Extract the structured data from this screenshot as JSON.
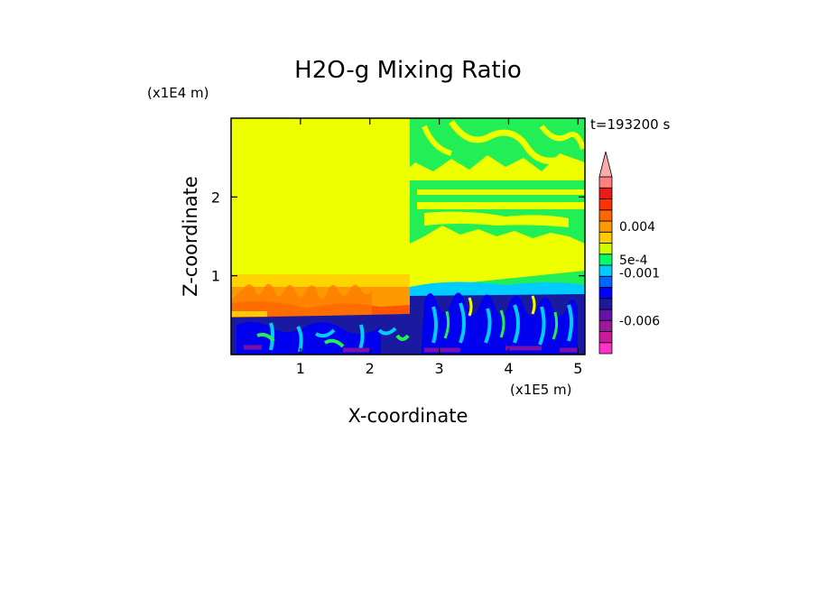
{
  "chart_data": {
    "type": "heatmap",
    "title": "H2O-g Mixing Ratio",
    "xlabel": "X-coordinate",
    "ylabel": "Z-coordinate",
    "x_units": "(x1E5 m)",
    "y_units": "(x1E4 m)",
    "time_label": "t=193200 s",
    "xlim": [
      0,
      5.1
    ],
    "ylim": [
      0,
      3.0
    ],
    "x_ticks": [
      1,
      2,
      3,
      4,
      5
    ],
    "y_ticks": [
      1,
      2
    ],
    "colorbar": {
      "colors_bottom_to_top": [
        "#ff33cc",
        "#cc1a99",
        "#9a1a9a",
        "#6611aa",
        "#1a1a9a",
        "#0000ff",
        "#0066ff",
        "#00ccff",
        "#00ff66",
        "#ccff00",
        "#ffcc00",
        "#ff9900",
        "#ff6600",
        "#ff3300",
        "#ee1a1a",
        "#ff8080"
      ],
      "extend_top": true,
      "labels": [
        {
          "text": "0.004",
          "value": 0.004
        },
        {
          "text": "5e-4",
          "value": 0.0005
        },
        {
          "text": "-0.001",
          "value": -0.001
        },
        {
          "text": "-0.006",
          "value": -0.006
        }
      ]
    },
    "regions": [
      {
        "x": [
          0,
          2.55
        ],
        "z": [
          1.0,
          3.0
        ],
        "value": 0.0,
        "level": "near zero"
      },
      {
        "x": [
          0,
          2.55
        ],
        "z": [
          0.5,
          1.0
        ],
        "value": 0.003,
        "level": "positive"
      },
      {
        "x": [
          0,
          2.55
        ],
        "z": [
          0,
          0.5
        ],
        "value": -0.004,
        "level": "negative"
      },
      {
        "x": [
          2.55,
          5.1
        ],
        "z": [
          1.0,
          3.0
        ],
        "value": -0.0005,
        "level": "slightly negative"
      },
      {
        "x": [
          2.55,
          5.1
        ],
        "z": [
          0,
          1.0
        ],
        "value": -0.004,
        "level": "negative"
      }
    ]
  }
}
